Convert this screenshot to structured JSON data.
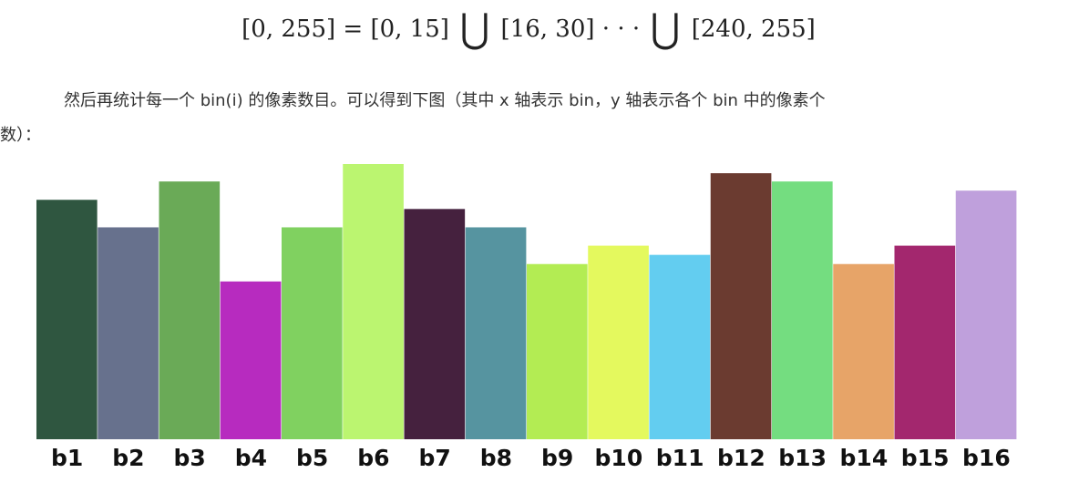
{
  "formula": {
    "lhs": "[0, 255]",
    "eq": "=",
    "t1": "[0, 15]",
    "union": "⋃",
    "t2": "[16, 30]",
    "dots": "· · ·",
    "t3": "[240, 255]"
  },
  "paragraph": {
    "line1": "然后再统计每一个 bin(i) 的像素数目。可以得到下图（其中 x 轴表示 bin，y 轴表示各个 bin 中的像素个",
    "line2": "数）："
  },
  "chart_data": {
    "type": "bar",
    "categories": [
      "b1",
      "b2",
      "b3",
      "b4",
      "b5",
      "b6",
      "b7",
      "b8",
      "b9",
      "b10",
      "b11",
      "b12",
      "b13",
      "b14",
      "b15",
      "b16"
    ],
    "values": [
      261,
      231,
      281,
      172,
      231,
      300,
      251,
      231,
      191,
      211,
      201,
      290,
      281,
      191,
      211,
      271
    ],
    "colors": [
      "#2f5640",
      "#67718d",
      "#6aaa57",
      "#b72bbf",
      "#80d160",
      "#bbf570",
      "#45213e",
      "#5694a0",
      "#b3ec53",
      "#e4f95e",
      "#63cdf0",
      "#6b3b30",
      "#74dd80",
      "#e7a468",
      "#a3276e",
      "#bfa0dc"
    ],
    "xlabel": "",
    "ylabel": "",
    "ylim": [
      0,
      300
    ],
    "grid": false,
    "legend": "none"
  }
}
